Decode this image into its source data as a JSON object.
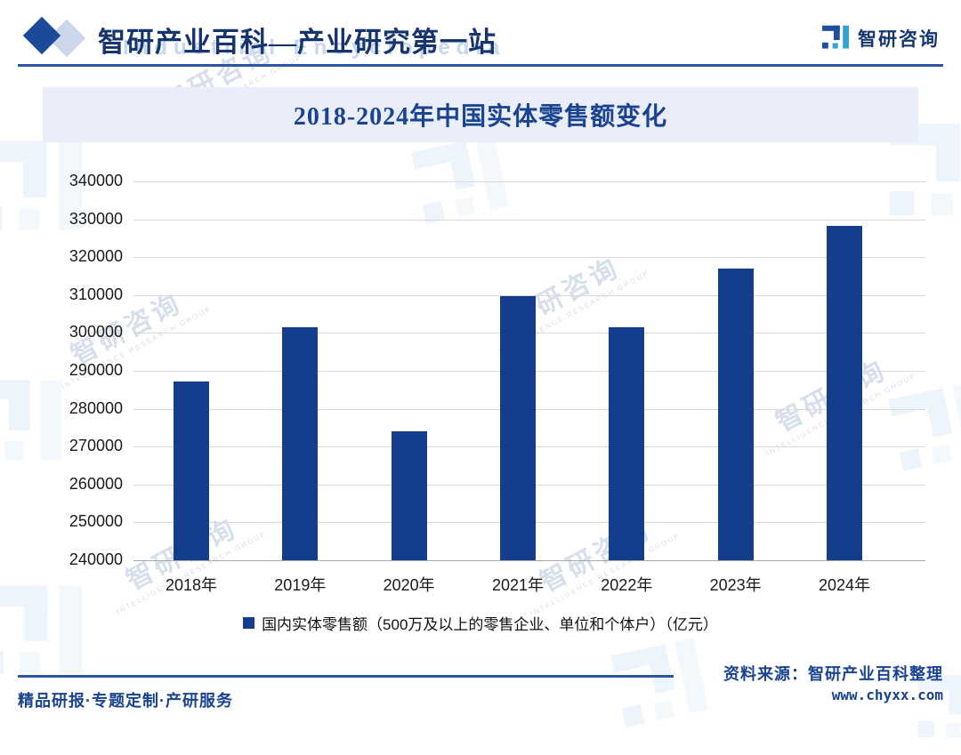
{
  "header": {
    "title": "智研产业百科—产业研究第一站",
    "title_watermark": "Industrial Encyclopedia",
    "brand_name": "智研咨询"
  },
  "banner": {
    "title": "2018-2024年中国实体零售额变化"
  },
  "chart_data": {
    "type": "bar",
    "title": "2018-2024年中国实体零售额变化",
    "categories": [
      "2018年",
      "2019年",
      "2020年",
      "2021年",
      "2022年",
      "2023年",
      "2024年"
    ],
    "values": [
      287300,
      301400,
      274000,
      309800,
      301400,
      316900,
      328200
    ],
    "series_name": "国内实体零售额（500万及以上的零售企业、单位和个体户）（亿元）",
    "unit": "亿元",
    "ylim": [
      240000,
      340000
    ],
    "ytick_step": 10000,
    "yticks": [
      240000,
      250000,
      260000,
      270000,
      280000,
      290000,
      300000,
      310000,
      320000,
      330000,
      340000
    ],
    "grid": true,
    "legend_position": "bottom",
    "bar_color": "#143e8c"
  },
  "legend": {
    "label": "国内实体零售额（500万及以上的零售企业、单位和个体户）（亿元）"
  },
  "footer": {
    "source": "资料来源：智研产业百科整理",
    "website": "www.chyxx.com",
    "tagline": "精品研报·专题定制·产研服务"
  },
  "watermark": {
    "text": "智研咨询",
    "subtext": "INTELLIGENCE RESEARCH GROUP"
  },
  "colors": {
    "accent": "#2b55a5",
    "navy": "#1a4390",
    "bar": "#143e8c",
    "banner_bg": "#e9eefa",
    "gridline": "#d9d9d9"
  }
}
